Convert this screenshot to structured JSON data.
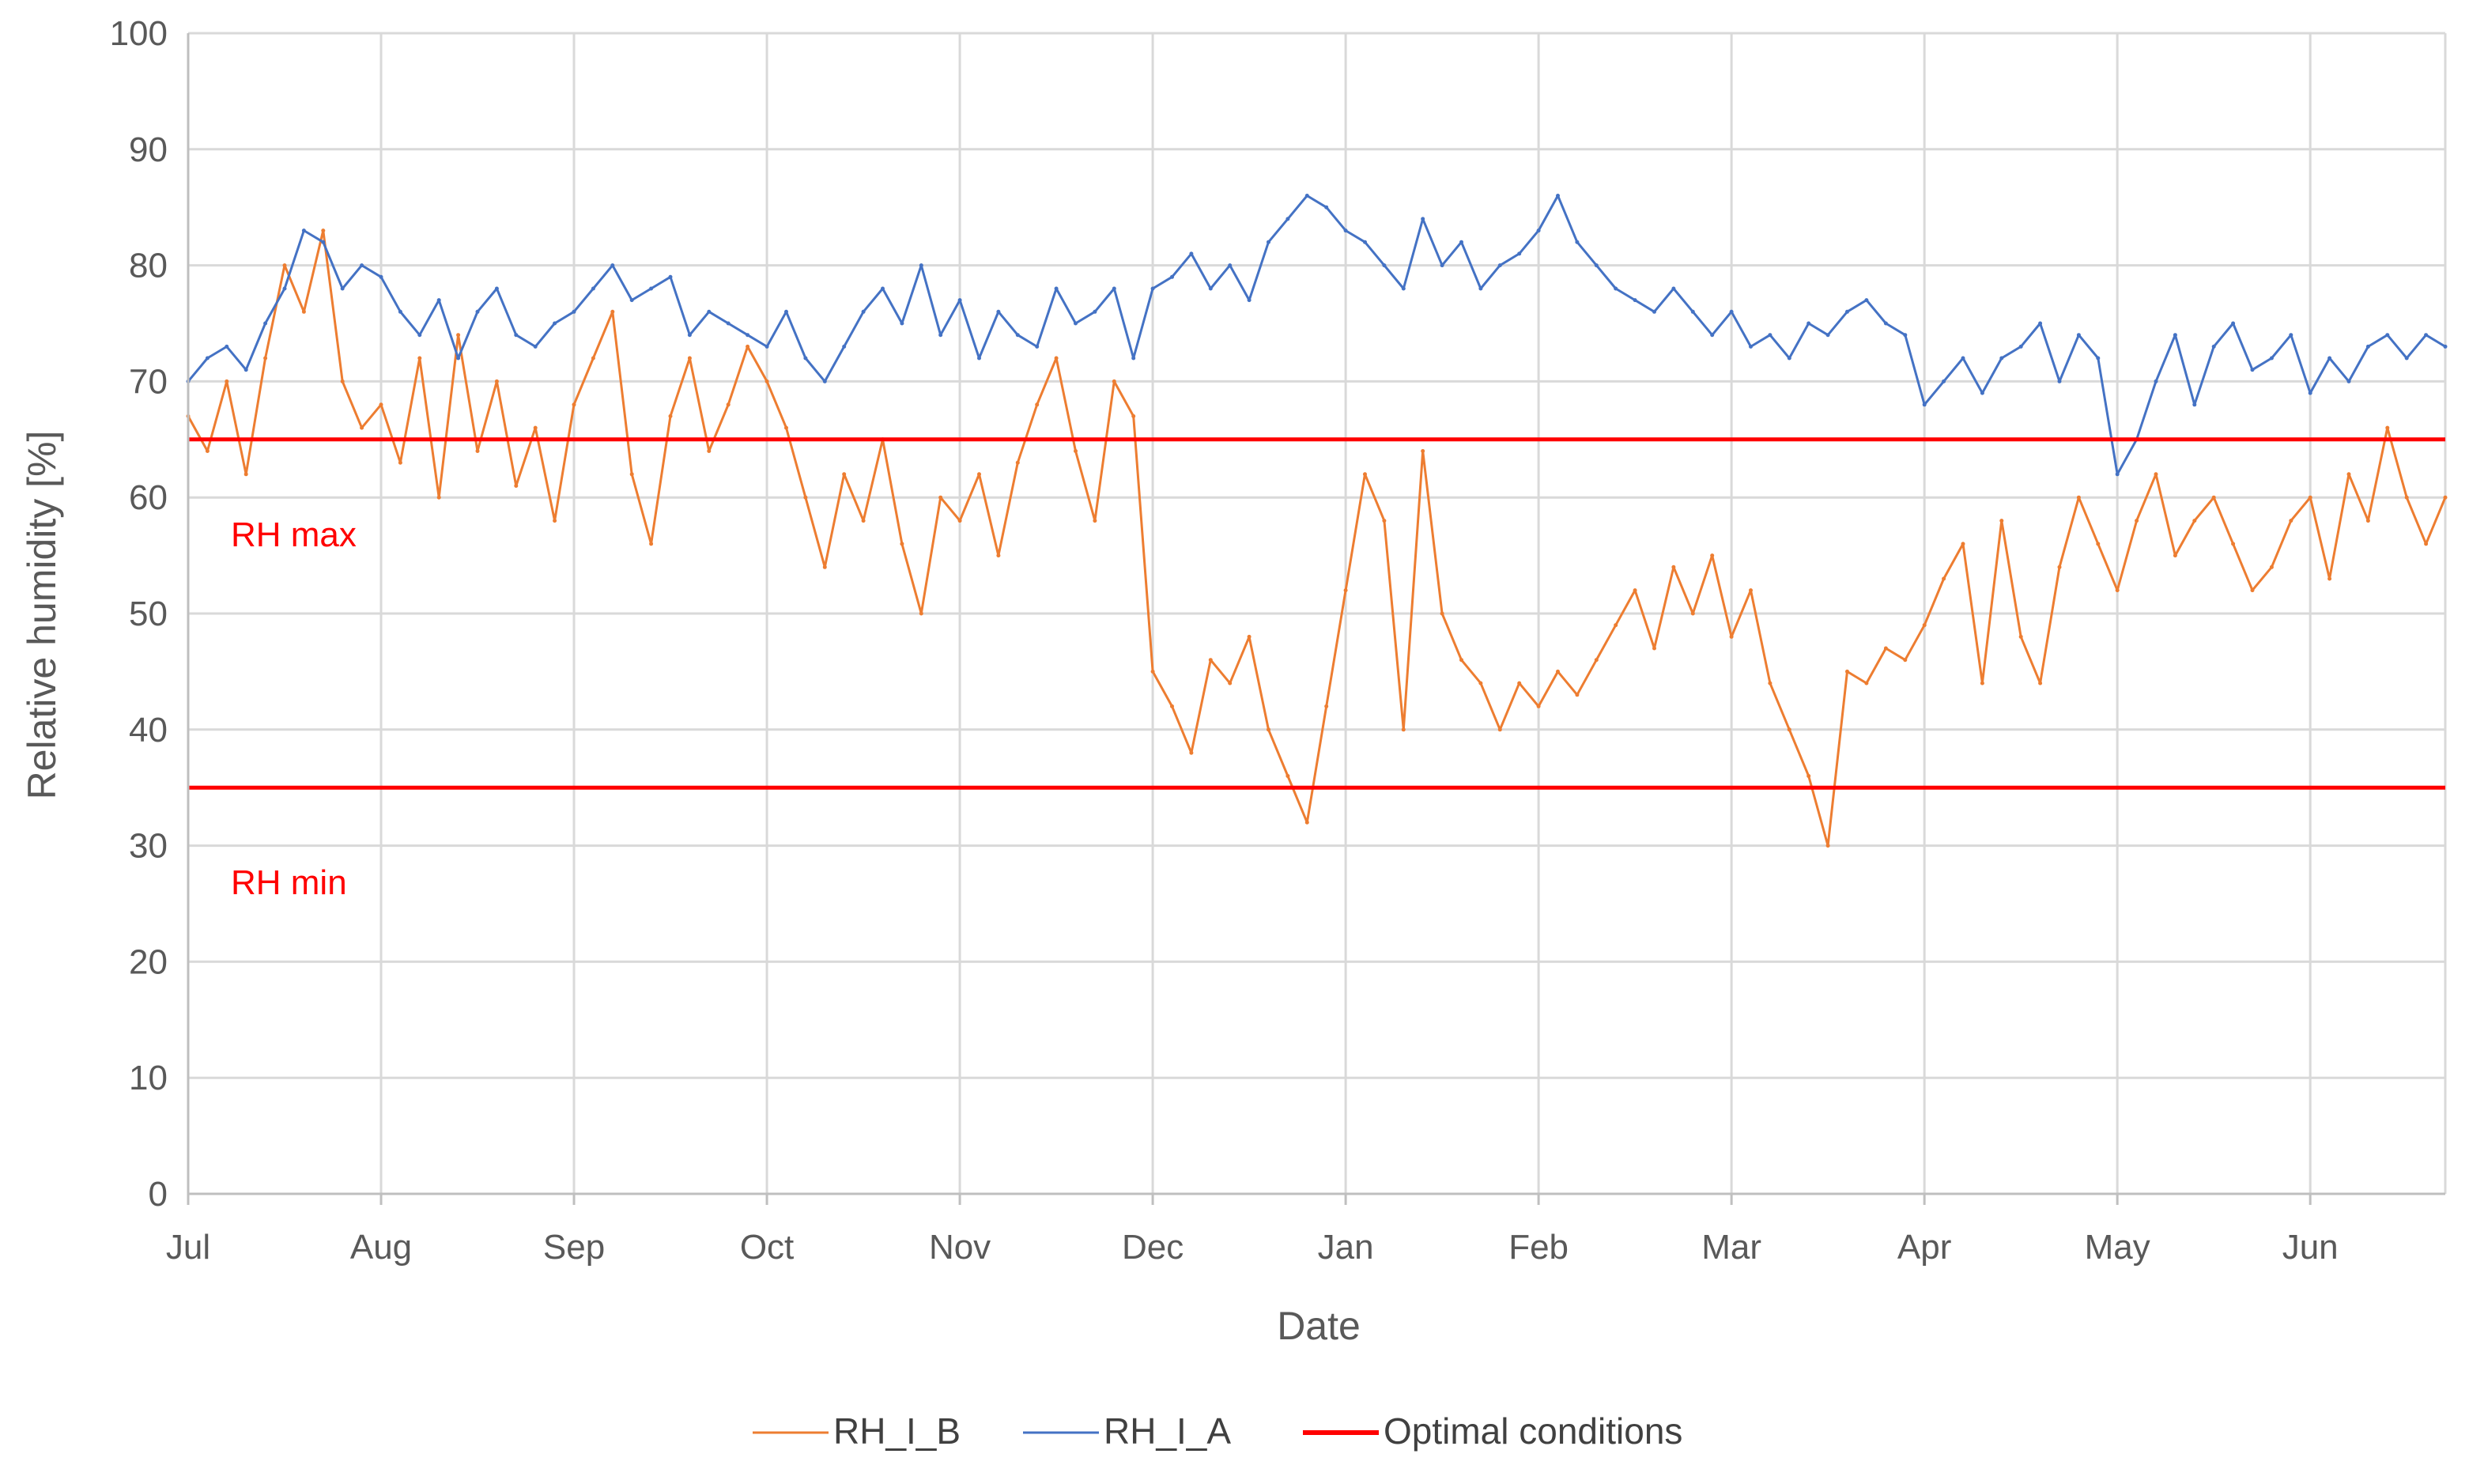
{
  "chart_data": {
    "type": "line",
    "title": "",
    "xlabel": "Date",
    "ylabel": "Relative humidity [%]",
    "ylim": [
      0,
      100
    ],
    "yticks": [
      0,
      10,
      20,
      30,
      40,
      50,
      60,
      70,
      80,
      90,
      100
    ],
    "xlim": [
      0,
      11.7
    ],
    "x_unit": "months from Jul 1",
    "categories": [
      "Jul",
      "Aug",
      "Sep",
      "Oct",
      "Nov",
      "Dec",
      "Jan",
      "Feb",
      "Mar",
      "Apr",
      "May",
      "Jun"
    ],
    "grid": true,
    "legend_position": "bottom",
    "series": [
      {
        "name": "RH_I_B",
        "color": "#ed7d31",
        "x": [
          0,
          0.1,
          0.2,
          0.3,
          0.4,
          0.5,
          0.6,
          0.7,
          0.8,
          0.9,
          1.0,
          1.1,
          1.2,
          1.3,
          1.4,
          1.5,
          1.6,
          1.7,
          1.8,
          1.9,
          2.0,
          2.1,
          2.2,
          2.3,
          2.4,
          2.5,
          2.6,
          2.7,
          2.8,
          2.9,
          3.0,
          3.1,
          3.2,
          3.3,
          3.4,
          3.5,
          3.6,
          3.7,
          3.8,
          3.9,
          4.0,
          4.1,
          4.2,
          4.3,
          4.4,
          4.5,
          4.6,
          4.7,
          4.8,
          4.9,
          5.0,
          5.1,
          5.2,
          5.3,
          5.4,
          5.5,
          5.6,
          5.7,
          5.8,
          5.9,
          6.0,
          6.1,
          6.2,
          6.3,
          6.4,
          6.5,
          6.6,
          6.7,
          6.8,
          6.9,
          7.0,
          7.1,
          7.2,
          7.3,
          7.4,
          7.5,
          7.6,
          7.7,
          7.8,
          7.9,
          8.0,
          8.1,
          8.2,
          8.3,
          8.4,
          8.5,
          8.6,
          8.7,
          8.8,
          8.9,
          9.0,
          9.1,
          9.2,
          9.3,
          9.4,
          9.5,
          9.6,
          9.7,
          9.8,
          9.9,
          10.0,
          10.1,
          10.2,
          10.3,
          10.4,
          10.5,
          10.6,
          10.7,
          10.8,
          10.9,
          11.0,
          11.1,
          11.2,
          11.3,
          11.4,
          11.5,
          11.6,
          11.7
        ],
        "values": [
          67,
          64,
          70,
          62,
          72,
          80,
          76,
          83,
          70,
          66,
          68,
          63,
          72,
          60,
          74,
          64,
          70,
          61,
          66,
          58,
          68,
          72,
          76,
          62,
          56,
          67,
          72,
          64,
          68,
          73,
          70,
          66,
          60,
          54,
          62,
          58,
          65,
          56,
          50,
          60,
          58,
          62,
          55,
          63,
          68,
          72,
          64,
          58,
          70,
          67,
          45,
          42,
          38,
          46,
          44,
          48,
          40,
          36,
          32,
          42,
          52,
          62,
          58,
          40,
          64,
          50,
          46,
          44,
          40,
          44,
          42,
          45,
          43,
          46,
          49,
          52,
          47,
          54,
          50,
          55,
          48,
          52,
          44,
          40,
          36,
          30,
          45,
          44,
          47,
          46,
          49,
          53,
          56,
          44,
          58,
          48,
          44,
          54,
          60,
          56,
          52,
          58,
          62,
          55,
          58,
          60,
          56,
          52,
          54,
          58,
          60,
          53,
          62,
          58,
          66,
          60,
          56,
          60
        ]
      },
      {
        "name": "RH_I_A",
        "color": "#4472c4",
        "x": [
          0,
          0.1,
          0.2,
          0.3,
          0.4,
          0.5,
          0.6,
          0.7,
          0.8,
          0.9,
          1.0,
          1.1,
          1.2,
          1.3,
          1.4,
          1.5,
          1.6,
          1.7,
          1.8,
          1.9,
          2.0,
          2.1,
          2.2,
          2.3,
          2.4,
          2.5,
          2.6,
          2.7,
          2.8,
          2.9,
          3.0,
          3.1,
          3.2,
          3.3,
          3.4,
          3.5,
          3.6,
          3.7,
          3.8,
          3.9,
          4.0,
          4.1,
          4.2,
          4.3,
          4.4,
          4.5,
          4.6,
          4.7,
          4.8,
          4.9,
          5.0,
          5.1,
          5.2,
          5.3,
          5.4,
          5.5,
          5.6,
          5.7,
          5.8,
          5.9,
          6.0,
          6.1,
          6.2,
          6.3,
          6.4,
          6.5,
          6.6,
          6.7,
          6.8,
          6.9,
          7.0,
          7.1,
          7.2,
          7.3,
          7.4,
          7.5,
          7.6,
          7.7,
          7.8,
          7.9,
          8.0,
          8.1,
          8.2,
          8.3,
          8.4,
          8.5,
          8.6,
          8.7,
          8.8,
          8.9,
          9.0,
          9.1,
          9.2,
          9.3,
          9.4,
          9.5,
          9.6,
          9.7,
          9.8,
          9.9,
          10.0,
          10.1,
          10.2,
          10.3,
          10.4,
          10.5,
          10.6,
          10.7,
          10.8,
          10.9,
          11.0,
          11.1,
          11.2,
          11.3,
          11.4,
          11.5,
          11.6,
          11.7
        ],
        "values": [
          70,
          72,
          73,
          71,
          75,
          78,
          83,
          82,
          78,
          80,
          79,
          76,
          74,
          77,
          72,
          76,
          78,
          74,
          73,
          75,
          76,
          78,
          80,
          77,
          78,
          79,
          74,
          76,
          75,
          74,
          73,
          76,
          72,
          70,
          73,
          76,
          78,
          75,
          80,
          74,
          77,
          72,
          76,
          74,
          73,
          78,
          75,
          76,
          78,
          72,
          78,
          79,
          81,
          78,
          80,
          77,
          82,
          84,
          86,
          85,
          83,
          82,
          80,
          78,
          84,
          80,
          82,
          78,
          80,
          81,
          83,
          86,
          82,
          80,
          78,
          77,
          76,
          78,
          76,
          74,
          76,
          73,
          74,
          72,
          75,
          74,
          76,
          77,
          75,
          74,
          68,
          70,
          72,
          69,
          72,
          73,
          75,
          70,
          74,
          72,
          62,
          65,
          70,
          74,
          68,
          73,
          75,
          71,
          72,
          74,
          69,
          72,
          70,
          73,
          74,
          72,
          74,
          73
        ]
      }
    ],
    "reference_lines": [
      {
        "name": "Optimal conditions",
        "color": "#ff0000",
        "y": 65,
        "label": "RH max"
      },
      {
        "name": "Optimal conditions",
        "color": "#ff0000",
        "y": 35,
        "label": "RH min"
      }
    ],
    "legend": [
      {
        "label": "RH_I_B",
        "color": "#ed7d31",
        "weight": "thin"
      },
      {
        "label": "RH_I_A",
        "color": "#4472c4",
        "weight": "thin"
      },
      {
        "label": "Optimal conditions",
        "color": "#ff0000",
        "weight": "thick"
      }
    ]
  }
}
